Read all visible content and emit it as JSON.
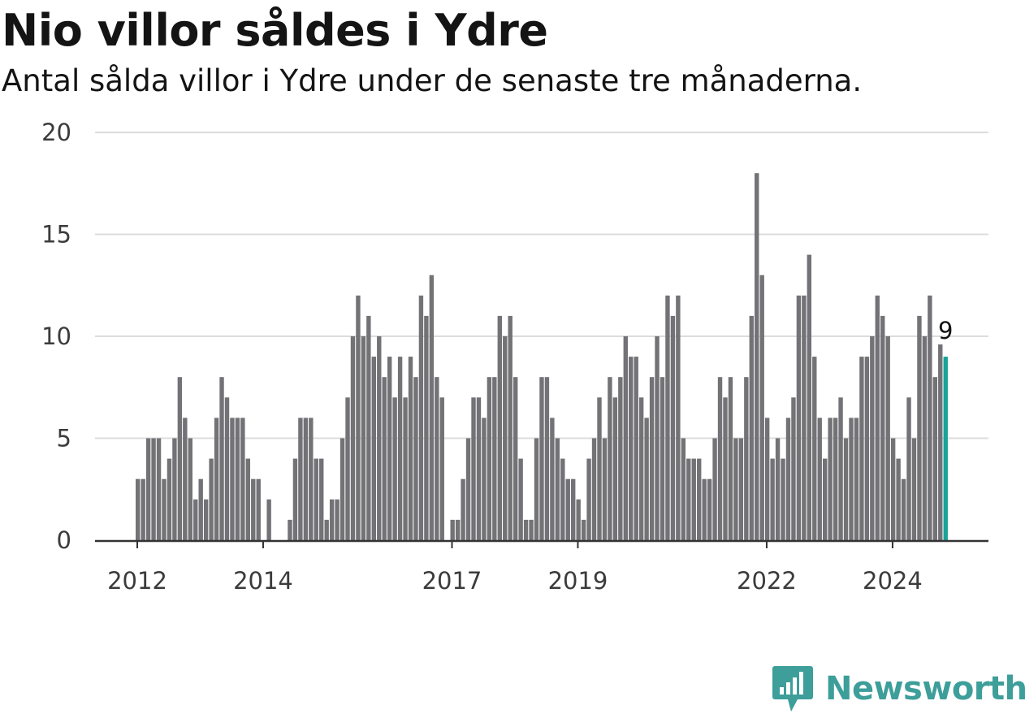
{
  "header": {
    "title": "Nio villor såldes i Ydre",
    "subtitle": "Antal sålda villor i Ydre under de senaste tre månaderna."
  },
  "brand": {
    "name": "Newsworthy",
    "icon": "newsworthy-logo-icon",
    "color": "#3d9e9a"
  },
  "colors": {
    "bar": "#737276",
    "highlight": "#19a39a",
    "grid": "#dcdcdc",
    "axis": "#333333"
  },
  "chart_data": {
    "type": "bar",
    "title": "Nio villor såldes i Ydre",
    "subtitle": "Antal sålda villor i Ydre under de senaste tre månaderna.",
    "x_start": "2012-01",
    "x_end": "2024-09",
    "x_ticks": [
      "2012",
      "2014",
      "2017",
      "2019",
      "2022",
      "2024"
    ],
    "y_ticks": [
      0,
      5,
      10,
      15,
      20
    ],
    "ylim": [
      0,
      20
    ],
    "grid": true,
    "last_label": "9",
    "values": [
      3,
      3,
      5,
      5,
      5,
      3,
      4,
      5,
      8,
      6,
      5,
      2,
      3,
      2,
      4,
      6,
      8,
      7,
      6,
      6,
      6,
      4,
      3,
      3,
      null,
      2,
      null,
      null,
      null,
      1,
      4,
      6,
      6,
      6,
      4,
      4,
      1,
      2,
      2,
      5,
      7,
      10,
      12,
      10,
      11,
      9,
      10,
      8,
      9,
      7,
      9,
      7,
      9,
      8,
      12,
      11,
      13,
      8,
      7,
      null,
      1,
      1,
      3,
      5,
      7,
      7,
      6,
      8,
      8,
      11,
      10,
      11,
      8,
      4,
      1,
      1,
      5,
      8,
      8,
      6,
      5,
      4,
      3,
      3,
      2,
      1,
      4,
      5,
      7,
      5,
      8,
      7,
      8,
      10,
      9,
      9,
      7,
      6,
      8,
      10,
      8,
      12,
      11,
      12,
      5,
      4,
      4,
      4,
      3,
      3,
      5,
      8,
      7,
      8,
      5,
      5,
      8,
      11,
      18,
      13,
      6,
      4,
      5,
      4,
      6,
      7,
      12,
      12,
      14,
      9,
      6,
      4,
      6,
      6,
      7,
      5,
      6,
      6,
      9,
      9,
      10,
      12,
      11,
      10,
      5,
      4,
      3,
      7,
      5,
      11,
      10,
      12,
      8,
      9.6,
      9
    ]
  }
}
